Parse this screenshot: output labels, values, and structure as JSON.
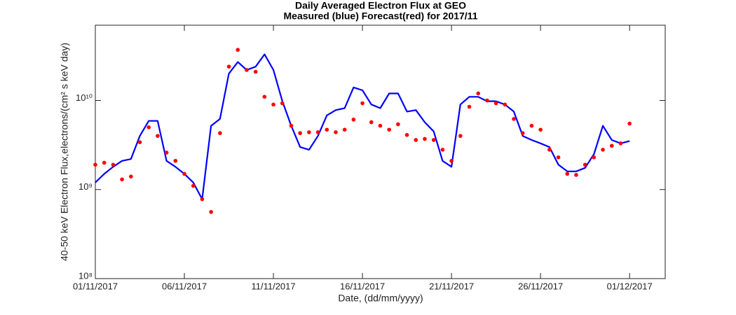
{
  "chart_data": {
    "type": "line",
    "title": "Daily Averaged Electron Flux at GEO",
    "subtitle": "Measured (blue) Forecast(red) for 2017/11",
    "x_label": "Date, (dd/mm/yyyy)",
    "y_label": "40-50 keV Electron Flux,electrons/(cm² s keV day)",
    "log_y": true,
    "x": [
      "2017-11-01 00:00",
      "2017-11-01 12:00",
      "2017-11-02 00:00",
      "2017-11-02 12:00",
      "2017-11-03 00:00",
      "2017-11-03 12:00",
      "2017-11-04 00:00",
      "2017-11-04 12:00",
      "2017-11-05 00:00",
      "2017-11-05 12:00",
      "2017-11-06 00:00",
      "2017-11-06 12:00",
      "2017-11-07 00:00",
      "2017-11-07 12:00",
      "2017-11-08 00:00",
      "2017-11-08 12:00",
      "2017-11-09 00:00",
      "2017-11-09 12:00",
      "2017-11-10 00:00",
      "2017-11-10 12:00",
      "2017-11-11 00:00",
      "2017-11-11 12:00",
      "2017-11-12 00:00",
      "2017-11-12 12:00",
      "2017-11-13 00:00",
      "2017-11-13 12:00",
      "2017-11-14 00:00",
      "2017-11-14 12:00",
      "2017-11-15 00:00",
      "2017-11-15 12:00",
      "2017-11-16 00:00",
      "2017-11-16 12:00",
      "2017-11-17 00:00",
      "2017-11-17 12:00",
      "2017-11-18 00:00",
      "2017-11-18 12:00",
      "2017-11-19 00:00",
      "2017-11-19 12:00",
      "2017-11-20 00:00",
      "2017-11-20 12:00",
      "2017-11-21 00:00",
      "2017-11-21 12:00",
      "2017-11-22 00:00",
      "2017-11-22 12:00",
      "2017-11-23 00:00",
      "2017-11-23 12:00",
      "2017-11-24 00:00",
      "2017-11-24 12:00",
      "2017-11-25 00:00",
      "2017-11-25 12:00",
      "2017-11-26 00:00",
      "2017-11-26 12:00",
      "2017-11-27 00:00",
      "2017-11-27 12:00",
      "2017-11-28 00:00",
      "2017-11-28 12:00",
      "2017-11-29 00:00",
      "2017-11-29 12:00",
      "2017-11-30 00:00",
      "2017-11-30 12:00",
      "2017-12-01 00:00"
    ],
    "series": [
      {
        "name": "Measured",
        "color": "#0000ff",
        "style": "line",
        "values": [
          1200000000,
          1500000000,
          1800000000,
          2100000000,
          2200000000,
          4000000000,
          5900000000,
          5900000000,
          2100000000,
          1800000000,
          1500000000,
          1200000000,
          780000000,
          5200000000,
          6200000000,
          20000000000,
          27000000000,
          22000000000,
          24000000000,
          33000000000,
          22000000000,
          9800000000,
          5200000000,
          3000000000,
          2800000000,
          4000000000,
          6800000000,
          7800000000,
          8200000000,
          14000000000,
          13000000000,
          9000000000,
          8200000000,
          12000000000,
          12000000000,
          7500000000,
          7800000000,
          5700000000,
          4500000000,
          2100000000,
          1800000000,
          9000000000,
          11000000000,
          11000000000,
          9800000000,
          9800000000,
          9000000000,
          7500000000,
          4000000000,
          3600000000,
          3300000000,
          3000000000,
          1900000000,
          1600000000,
          1600000000,
          1750000000,
          2500000000,
          5200000000,
          3600000000,
          3300000000,
          3500000000
        ]
      },
      {
        "name": "Forecast",
        "color": "#ff0000",
        "style": "dots",
        "values": [
          1900000000,
          2000000000,
          1900000000,
          1300000000,
          1400000000,
          3400000000,
          5000000000,
          4000000000,
          2600000000,
          2100000000,
          1500000000,
          1100000000,
          780000000,
          560000000,
          4300000000,
          24000000000,
          37000000000,
          22000000000,
          21000000000,
          11000000000,
          9000000000,
          9300000000,
          5200000000,
          4300000000,
          4400000000,
          4400000000,
          4700000000,
          4400000000,
          4700000000,
          6100000000,
          9300000000,
          5700000000,
          5200000000,
          4700000000,
          5400000000,
          4100000000,
          3600000000,
          3700000000,
          3600000000,
          2800000000,
          2100000000,
          4000000000,
          8500000000,
          12000000000,
          10000000000,
          9300000000,
          9000000000,
          6200000000,
          4300000000,
          5200000000,
          4700000000,
          2800000000,
          2300000000,
          1500000000,
          1460000000,
          1900000000,
          2300000000,
          2800000000,
          3100000000,
          3300000000,
          5500000000
        ]
      }
    ],
    "xlim": [
      "2017-11-01 00:00",
      "2017-12-03 00:00"
    ],
    "xticks": [
      {
        "value": "2017-11-01 00:00",
        "label": "01/11/2017"
      },
      {
        "value": "2017-11-06 00:00",
        "label": "06/11/2017"
      },
      {
        "value": "2017-11-11 00:00",
        "label": "11/11/2017"
      },
      {
        "value": "2017-11-16 00:00",
        "label": "16/11/2017"
      },
      {
        "value": "2017-11-21 00:00",
        "label": "21/11/2017"
      },
      {
        "value": "2017-11-26 00:00",
        "label": "26/11/2017"
      },
      {
        "value": "2017-12-01 00:00",
        "label": "01/12/2017"
      }
    ],
    "ylim": [
      100000000,
      70000000000
    ],
    "yticks": [
      {
        "value": 100000000,
        "label": "10⁸"
      },
      {
        "value": 1000000000,
        "label": "10⁹"
      },
      {
        "value": 10000000000,
        "label": "10¹⁰"
      }
    ]
  }
}
